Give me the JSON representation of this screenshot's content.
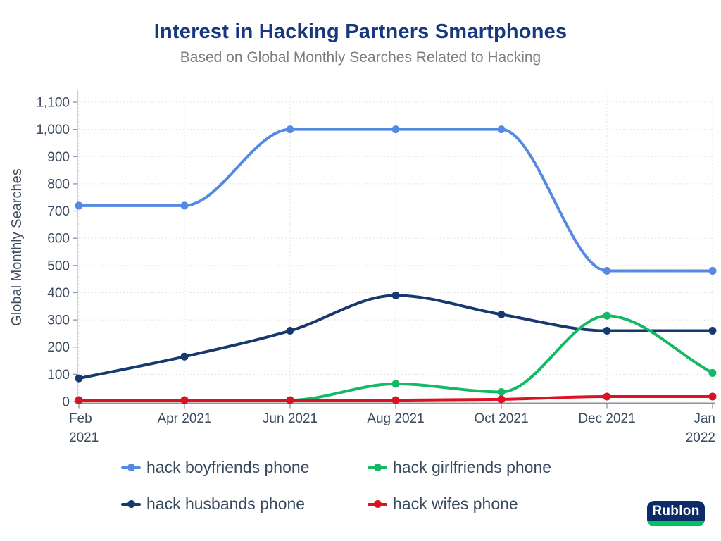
{
  "header": {
    "title": "Interest in Hacking Partners Smartphones",
    "subtitle": "Based on Global Monthly Searches Related to Hacking"
  },
  "chart_data": {
    "type": "line",
    "title": "Interest in Hacking Partners Smartphones",
    "subtitle": "Based on Global Monthly Searches Related to Hacking",
    "x": [
      "Feb 2021",
      "Apr 2021",
      "Jun 2021",
      "Aug 2021",
      "Oct 2021",
      "Dec 2021",
      "Jan 2022"
    ],
    "x_tick_lines": [
      [
        "Feb",
        "2021"
      ],
      [
        "Apr 2021"
      ],
      [
        "Jun 2021"
      ],
      [
        "Aug 2021"
      ],
      [
        "Oct 2021"
      ],
      [
        "Dec 2021"
      ],
      [
        "Jan",
        "2022"
      ]
    ],
    "series": [
      {
        "name": "hack boyfriends phone",
        "color": "#568ae2",
        "values": [
          720,
          720,
          1000,
          1000,
          1000,
          480,
          480
        ]
      },
      {
        "name": "hack girlfriends phone",
        "color": "#12ba66",
        "values": [
          5,
          5,
          5,
          65,
          35,
          315,
          105
        ]
      },
      {
        "name": "hack husbands phone",
        "color": "#16396f",
        "values": [
          85,
          165,
          260,
          390,
          320,
          260,
          260
        ]
      },
      {
        "name": "hack wifes phone",
        "color": "#dc1222",
        "values": [
          5,
          5,
          5,
          5,
          8,
          18,
          18
        ]
      }
    ],
    "draw_order": [
      0,
      2,
      1,
      3
    ],
    "xlabel": "",
    "ylabel": "Global Monthly Searches",
    "ylim": [
      0,
      1100
    ],
    "ytick_step": 100,
    "grid": true,
    "curve": "monotone",
    "legend_position": "bottom"
  },
  "legend": {
    "items": [
      {
        "label": "hack boyfriends phone",
        "color": "#568ae2"
      },
      {
        "label": "hack girlfriends phone",
        "color": "#12ba66"
      },
      {
        "label": "hack husbands phone",
        "color": "#16396f"
      },
      {
        "label": "hack wifes phone",
        "color": "#dc1222"
      }
    ]
  },
  "logo": {
    "text": "Rublon",
    "bg_color": "#0d2b66",
    "accent_color": "#00c35f"
  },
  "colors": {
    "title": "#17387f",
    "subtitle": "#7d7d7d",
    "axis_text": "#3c4b60",
    "gridline": "#e3e3e3",
    "y_axis_line": "#b3b9c1",
    "x_axis_line": "#8e949b"
  }
}
